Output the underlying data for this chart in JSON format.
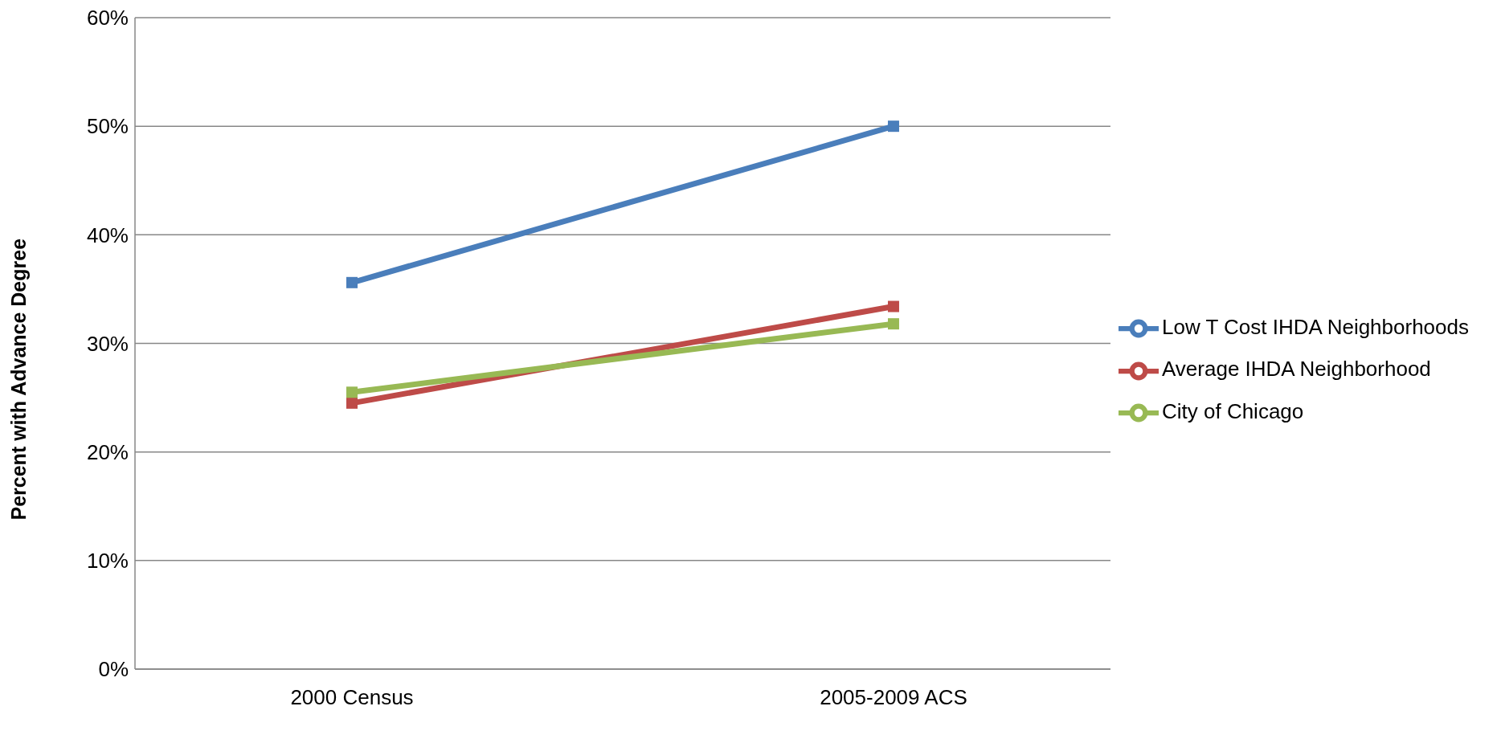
{
  "chart_data": {
    "type": "line",
    "ylabel": "Percent with Advance Degree",
    "categories": [
      "2000 Census",
      "2005-2009 ACS"
    ],
    "series": [
      {
        "name": "Low T Cost IHDA Neighborhoods",
        "color": "#4a7ebb",
        "values": [
          35.6,
          50.0
        ]
      },
      {
        "name": "Average IHDA Neighborhood",
        "color": "#be4b48",
        "values": [
          24.5,
          33.4
        ]
      },
      {
        "name": "City of Chicago",
        "color": "#98b954",
        "values": [
          25.5,
          31.8
        ]
      }
    ],
    "ylim": [
      0,
      60
    ],
    "yticks": [
      {
        "value": 0,
        "label": "0%"
      },
      {
        "value": 10,
        "label": "10%"
      },
      {
        "value": 20,
        "label": "20%"
      },
      {
        "value": 30,
        "label": "30%"
      },
      {
        "value": 40,
        "label": "40%"
      },
      {
        "value": 50,
        "label": "50%"
      },
      {
        "value": 60,
        "label": "60%"
      }
    ],
    "grid": "y",
    "legend": "right",
    "marker": "square",
    "line_style": "solid"
  }
}
